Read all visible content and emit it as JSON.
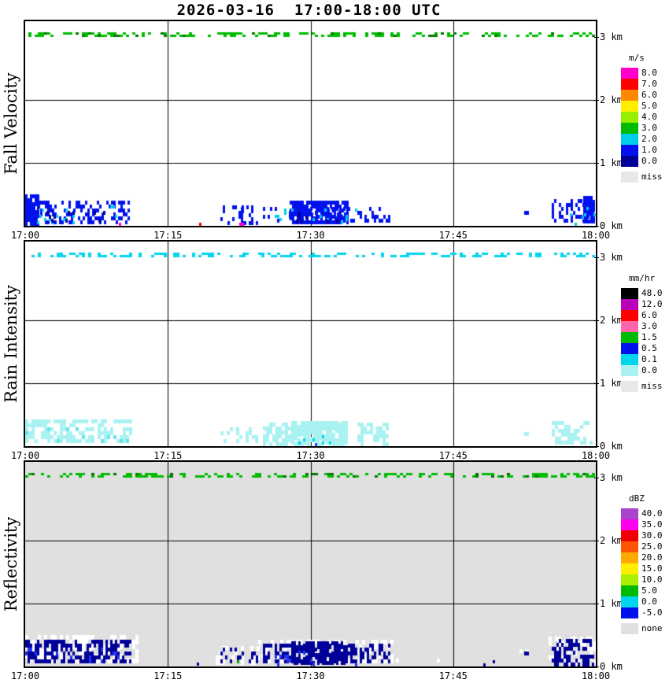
{
  "title": "2026-03-16  17:00-18:00 UTC",
  "chart_data": {
    "type": "heatmap",
    "title": "2026-03-16  17:00-18:00 UTC",
    "layout": "three stacked time-height radar quicklook panels sharing one time axis",
    "axes": {
      "x_tick_labels": [
        "17:00",
        "17:15",
        "17:30",
        "17:45",
        "18:00"
      ],
      "x_tick_minutes": [
        0,
        15,
        30,
        45,
        60
      ],
      "x_range_minutes": [
        0,
        60
      ],
      "y_tick_labels": [
        "3 km",
        "2 km",
        "1 km",
        "0 km"
      ],
      "y_tick_km": [
        3,
        2,
        1,
        0
      ],
      "y_range_km": [
        0,
        3.25
      ],
      "grid": "black lines at 17:15, 17:30, 17:45 and at 1 km, 2 km"
    },
    "panels": [
      {
        "id": "fall-velocity",
        "ylabel": "Fall Velocity",
        "unit": "m/s",
        "background": "#ffffff",
        "legend": [
          {
            "label": "8.0",
            "color": "#ff00cc"
          },
          {
            "label": "7.0",
            "color": "#ff0000"
          },
          {
            "label": "6.0",
            "color": "#ff8800"
          },
          {
            "label": "5.0",
            "color": "#ffee00"
          },
          {
            "label": "4.0",
            "color": "#99ee00"
          },
          {
            "label": "3.0",
            "color": "#00bb00"
          },
          {
            "label": "2.0",
            "color": "#00ccee"
          },
          {
            "label": "1.0",
            "color": "#0011ee"
          },
          {
            "label": "0.0",
            "color": "#000099"
          }
        ],
        "missing": {
          "label": "miss",
          "color": "#e8e8e8"
        },
        "features": [
          {
            "desc": "broken echo line near 3 km",
            "t": [
              0,
              60
            ],
            "h": [
              3.0,
              3.08
            ],
            "color": "#00bb00",
            "cov": 0.5,
            "cell": [
              4,
              3
            ]
          },
          {
            "desc": "dark specks in 3 km line",
            "t": [
              0,
              60
            ],
            "h": [
              3.0,
              3.08
            ],
            "color": "#007700",
            "cov": 0.07,
            "cell": [
              4,
              3
            ]
          },
          {
            "desc": "shallow echo 17:00-17:11 around 1 m/s",
            "t": [
              0,
              1.5
            ],
            "h": [
              0,
              0.5
            ],
            "color": "#0011ee",
            "cov": 1.6,
            "cell": [
              3,
              5
            ]
          },
          {
            "t": [
              0.8,
              11.2
            ],
            "h": [
              0,
              0.4
            ],
            "color": "#0011ee",
            "cov": 0.55,
            "cell": [
              3,
              5
            ]
          },
          {
            "t": [
              1,
              10.5
            ],
            "h": [
              0,
              0.32
            ],
            "color": "#00ccee",
            "cov": 0.07,
            "cell": [
              3,
              4
            ]
          },
          {
            "t": [
              0,
              10
            ],
            "h": [
              0,
              0.3
            ],
            "color": "#000099",
            "cov": 0.06,
            "cell": [
              3,
              5
            ]
          },
          {
            "t": [
              9.6,
              10.3
            ],
            "h": [
              0,
              0.05
            ],
            "color": "#ff00cc",
            "cov": 0.9,
            "cell": [
              3,
              4
            ]
          },
          {
            "desc": "isolated speck near 17:18",
            "t": [
              18.0,
              18.5
            ],
            "h": [
              0,
              0.05
            ],
            "color": "#ff0000",
            "cov": 0.9,
            "cell": [
              3,
              4
            ]
          },
          {
            "desc": "sparse echo 17:20-17:24",
            "t": [
              20.5,
              24.5
            ],
            "h": [
              0,
              0.32
            ],
            "color": "#0011ee",
            "cov": 0.25,
            "cell": [
              3,
              5
            ]
          },
          {
            "t": [
              22.4,
              23.1
            ],
            "h": [
              0,
              0.3
            ],
            "color": "#0011ee",
            "cov": 1.2,
            "cell": [
              3,
              5
            ]
          },
          {
            "t": [
              22.5,
              23.1
            ],
            "h": [
              0,
              0.05
            ],
            "color": "#ff00cc",
            "cov": 0.8,
            "cell": [
              3,
              4
            ]
          },
          {
            "desc": "main echo 17:25-17:38",
            "t": [
              25,
              38.5
            ],
            "h": [
              0,
              0.3
            ],
            "color": "#0011ee",
            "cov": 0.3,
            "cell": [
              3,
              5
            ]
          },
          {
            "t": [
              27.8,
              34.2
            ],
            "h": [
              0,
              0.4
            ],
            "color": "#0011ee",
            "cov": 1.6,
            "cell": [
              3,
              5
            ]
          },
          {
            "t": [
              26,
              35
            ],
            "h": [
              0,
              0.28
            ],
            "color": "#00ccee",
            "cov": 0.08,
            "cell": [
              3,
              4
            ]
          },
          {
            "t": [
              28,
              34
            ],
            "h": [
              0,
              0.22
            ],
            "color": "#000099",
            "cov": 0.1,
            "cell": [
              3,
              5
            ]
          },
          {
            "desc": "speck near 17:53",
            "t": [
              52.5,
              53.0
            ],
            "h": [
              0.14,
              0.24
            ],
            "color": "#0011ee",
            "cov": 0.9,
            "cell": [
              3,
              5
            ]
          },
          {
            "desc": "echo 17:56-18:00",
            "t": [
              55.4,
              60
            ],
            "h": [
              0,
              0.42
            ],
            "color": "#0011ee",
            "cov": 0.55,
            "cell": [
              3,
              5
            ]
          },
          {
            "t": [
              58.7,
              60
            ],
            "h": [
              0,
              0.48
            ],
            "color": "#0011ee",
            "cov": 1.6,
            "cell": [
              3,
              5
            ]
          },
          {
            "t": [
              56,
              60
            ],
            "h": [
              0,
              0.3
            ],
            "color": "#00ccee",
            "cov": 0.06,
            "cell": [
              3,
              4
            ]
          }
        ]
      },
      {
        "id": "rain-intensity",
        "ylabel": "Rain Intensity",
        "unit": "mm/hr",
        "background": "#ffffff",
        "legend": [
          {
            "label": "48.0",
            "color": "#000000"
          },
          {
            "label": "12.0",
            "color": "#bb00bb"
          },
          {
            "label": "6.0",
            "color": "#ff0000"
          },
          {
            "label": "3.0",
            "color": "#ff66aa"
          },
          {
            "label": "1.5",
            "color": "#00bb00"
          },
          {
            "label": "0.5",
            "color": "#0011ee"
          },
          {
            "label": "0.1",
            "color": "#00d5ee"
          },
          {
            "label": "0.0",
            "color": "#aaf2f2"
          }
        ],
        "missing": {
          "label": "miss",
          "color": "#e8e8e8"
        },
        "features": [
          {
            "desc": "broken echo line near 3 km",
            "t": [
              0,
              60
            ],
            "h": [
              3.0,
              3.08
            ],
            "color": "#00d5ee",
            "cov": 0.5,
            "cell": [
              4,
              3
            ]
          },
          {
            "desc": "very light rain 17:00-17:11",
            "t": [
              0,
              11.5
            ],
            "h": [
              0,
              0.42
            ],
            "color": "#aaf2f2",
            "cov": 0.85,
            "cell": [
              4,
              5
            ]
          },
          {
            "t": [
              0,
              11
            ],
            "h": [
              0,
              0.3
            ],
            "color": "#66e4ee",
            "cov": 0.08,
            "cell": [
              4,
              5
            ]
          },
          {
            "t": [
              20.5,
              24.5
            ],
            "h": [
              0,
              0.3
            ],
            "color": "#aaf2f2",
            "cov": 0.35,
            "cell": [
              4,
              5
            ]
          },
          {
            "desc": "main very light rain 17:25-17:38",
            "t": [
              25,
              38.5
            ],
            "h": [
              0,
              0.38
            ],
            "color": "#aaf2f2",
            "cov": 0.8,
            "cell": [
              4,
              5
            ]
          },
          {
            "t": [
              28,
              34
            ],
            "h": [
              0,
              0.4
            ],
            "color": "#aaf2f2",
            "cov": 1.5,
            "cell": [
              4,
              5
            ]
          },
          {
            "t": [
              28.5,
              33
            ],
            "h": [
              0,
              0.18
            ],
            "color": "#00d5ee",
            "cov": 0.12,
            "cell": [
              3,
              4
            ]
          },
          {
            "t": [
              30.2,
              30.9
            ],
            "h": [
              0,
              0.1
            ],
            "color": "#2244ff",
            "cov": 0.5,
            "cell": [
              3,
              4
            ]
          },
          {
            "t": [
              52.5,
              53.0
            ],
            "h": [
              0.14,
              0.22
            ],
            "color": "#aaf2f2",
            "cov": 0.9,
            "cell": [
              3,
              5
            ]
          },
          {
            "t": [
              55.4,
              60
            ],
            "h": [
              0,
              0.4
            ],
            "color": "#aaf2f2",
            "cov": 0.8,
            "cell": [
              4,
              5
            ]
          }
        ]
      },
      {
        "id": "reflectivity",
        "ylabel": "Reflectivity",
        "unit": "dBZ",
        "background": "#e0e0e0",
        "legend": [
          {
            "label": "40.0",
            "color": "#aa44cc"
          },
          {
            "label": "35.0",
            "color": "#ff00ee"
          },
          {
            "label": "30.0",
            "color": "#ee0000"
          },
          {
            "label": "25.0",
            "color": "#ff5500"
          },
          {
            "label": "20.0",
            "color": "#ffaa00"
          },
          {
            "label": "15.0",
            "color": "#ffee00"
          },
          {
            "label": "10.0",
            "color": "#aaee00"
          },
          {
            "label": "5.0",
            "color": "#00bb00"
          },
          {
            "label": "0.0",
            "color": "#00d5ee"
          },
          {
            "label": "-5.0",
            "color": "#0011ee"
          }
        ],
        "missing": {
          "label": "none",
          "color": "#e0e0e0"
        },
        "features": [
          {
            "desc": "broken echo line near 3 km",
            "t": [
              0,
              60
            ],
            "h": [
              3.0,
              3.08
            ],
            "color": "#00bb00",
            "cov": 0.5,
            "cell": [
              4,
              3
            ]
          },
          {
            "t": [
              0,
              60
            ],
            "h": [
              3.0,
              3.08
            ],
            "color": "#007700",
            "cov": 0.06,
            "cell": [
              4,
              3
            ]
          },
          {
            "desc": "weak echo 17:00-17:12",
            "t": [
              0,
              12
            ],
            "h": [
              0,
              0.5
            ],
            "color": "#ffffff",
            "cov": 0.7,
            "cell": [
              4,
              6
            ]
          },
          {
            "t": [
              0,
              11.2
            ],
            "h": [
              0,
              0.42
            ],
            "color": "#000099",
            "cov": 0.8,
            "cell": [
              3,
              5
            ]
          },
          {
            "t": [
              0,
              10
            ],
            "h": [
              0,
              0.3
            ],
            "color": "#2233ee",
            "cov": 0.08,
            "cell": [
              3,
              5
            ]
          },
          {
            "t": [
              18.0,
              18.5
            ],
            "h": [
              0,
              0.06
            ],
            "color": "#000099",
            "cov": 0.8,
            "cell": [
              3,
              4
            ]
          },
          {
            "t": [
              20,
              24.8
            ],
            "h": [
              0,
              0.33
            ],
            "color": "#ffffff",
            "cov": 0.4,
            "cell": [
              4,
              6
            ]
          },
          {
            "t": [
              20.5,
              24.5
            ],
            "h": [
              0,
              0.3
            ],
            "color": "#000099",
            "cov": 0.35,
            "cell": [
              3,
              5
            ]
          },
          {
            "desc": "green speck near 17:22",
            "t": [
              22.3,
              22.9
            ],
            "h": [
              0.02,
              0.1
            ],
            "color": "#00aa00",
            "cov": 0.8,
            "cell": [
              3,
              4
            ]
          },
          {
            "desc": "main weak echo 17:25-17:39",
            "t": [
              24.5,
              39
            ],
            "h": [
              0,
              0.42
            ],
            "color": "#ffffff",
            "cov": 0.6,
            "cell": [
              4,
              6
            ]
          },
          {
            "t": [
              25,
              38.5
            ],
            "h": [
              0,
              0.36
            ],
            "color": "#000099",
            "cov": 0.7,
            "cell": [
              3,
              5
            ]
          },
          {
            "t": [
              28,
              34
            ],
            "h": [
              0,
              0.4
            ],
            "color": "#000099",
            "cov": 1.4,
            "cell": [
              3,
              5
            ]
          },
          {
            "t": [
              26,
              35
            ],
            "h": [
              0,
              0.25
            ],
            "color": "#2233ee",
            "cov": 0.08,
            "cell": [
              3,
              5
            ]
          },
          {
            "t": [
              39,
              55
            ],
            "h": [
              0,
              0.12
            ],
            "color": "#ffffff",
            "cov": 0.05,
            "cell": [
              4,
              5
            ]
          },
          {
            "t": [
              40,
              54
            ],
            "h": [
              0,
              0.1
            ],
            "color": "#000099",
            "cov": 0.03,
            "cell": [
              3,
              4
            ]
          },
          {
            "t": [
              52,
              53.3
            ],
            "h": [
              0.1,
              0.28
            ],
            "color": "#ffffff",
            "cov": 0.7,
            "cell": [
              4,
              5
            ]
          },
          {
            "t": [
              52.5,
              53.0
            ],
            "h": [
              0.14,
              0.24
            ],
            "color": "#000099",
            "cov": 0.9,
            "cell": [
              3,
              5
            ]
          },
          {
            "t": [
              55,
              60
            ],
            "h": [
              0,
              0.48
            ],
            "color": "#ffffff",
            "cov": 0.6,
            "cell": [
              4,
              6
            ]
          },
          {
            "t": [
              55.4,
              60
            ],
            "h": [
              0,
              0.44
            ],
            "color": "#000099",
            "cov": 0.8,
            "cell": [
              3,
              5
            ]
          }
        ]
      }
    ]
  }
}
